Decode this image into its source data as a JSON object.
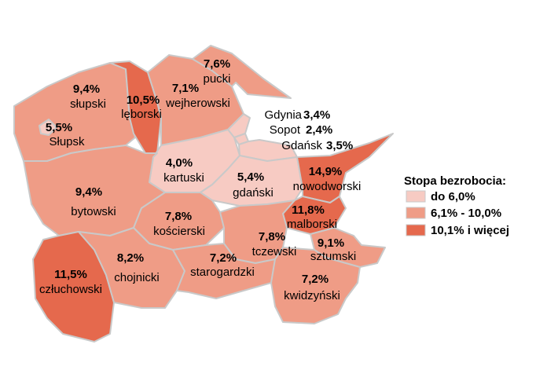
{
  "colors": {
    "low": "#f7cbc3",
    "mid": "#ef9c86",
    "high": "#e5694d",
    "border": "#c9c9c9"
  },
  "legend": {
    "title": "Stopa bezrobocia:",
    "items": [
      {
        "label": "do 6,0%",
        "class": "low"
      },
      {
        "label": "6,1% - 10,0%",
        "class": "mid"
      },
      {
        "label": "10,1% i więcej",
        "class": "high"
      }
    ]
  },
  "regions": [
    {
      "id": "slupski",
      "name": "słupski",
      "value": "9,4%",
      "class": "mid"
    },
    {
      "id": "slupsk",
      "name": "Słupsk",
      "value": "5,5%",
      "class": "low"
    },
    {
      "id": "leborski",
      "name": "lęborski",
      "value": "10,5%",
      "class": "high"
    },
    {
      "id": "wejherowski",
      "name": "wejherowski",
      "value": "7,1%",
      "class": "mid"
    },
    {
      "id": "pucki",
      "name": "pucki",
      "value": "7,6%",
      "class": "mid"
    },
    {
      "id": "gdynia",
      "name": "Gdynia",
      "value": "3,4%",
      "class": "low"
    },
    {
      "id": "sopot",
      "name": "Sopot",
      "value": "2,4%",
      "class": "low"
    },
    {
      "id": "gdansk",
      "name": "Gdańsk",
      "value": "3,5%",
      "class": "low"
    },
    {
      "id": "kartuski",
      "name": "kartuski",
      "value": "4,0%",
      "class": "low"
    },
    {
      "id": "gdanski",
      "name": "gdański",
      "value": "5,4%",
      "class": "low"
    },
    {
      "id": "nowodworski",
      "name": "nowodworski",
      "value": "14,9%",
      "class": "high"
    },
    {
      "id": "bytowski",
      "name": "bytowski",
      "value": "9,4%",
      "class": "mid"
    },
    {
      "id": "koscierski",
      "name": "kościerski",
      "value": "7,8%",
      "class": "mid"
    },
    {
      "id": "malborski",
      "name": "malborski",
      "value": "11,8%",
      "class": "high"
    },
    {
      "id": "tczewski",
      "name": "tczewski",
      "value": "7,8%",
      "class": "mid"
    },
    {
      "id": "sztumski",
      "name": "sztumski",
      "value": "9,1%",
      "class": "mid"
    },
    {
      "id": "czluchowski",
      "name": "człuchowski",
      "value": "11,5%",
      "class": "high"
    },
    {
      "id": "chojnicki",
      "name": "chojnicki",
      "value": "8,2%",
      "class": "mid"
    },
    {
      "id": "starogardzki",
      "name": "starogardzki",
      "value": "7,2%",
      "class": "mid"
    },
    {
      "id": "kwidzynski",
      "name": "kwidzyński",
      "value": "7,2%",
      "class": "mid"
    }
  ]
}
